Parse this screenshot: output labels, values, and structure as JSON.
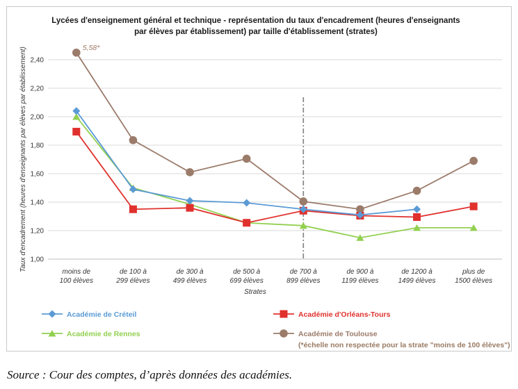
{
  "chart_data": {
    "type": "line",
    "title_lines": [
      "Lycées d'enseignement général et technique - représentation du taux d'encadrement (heures d'enseignants",
      "par élèves par établissement) par taille d'établissement (strates)"
    ],
    "xlabel": "Strates",
    "ylabel": "Taux d'encadrement (heures d'enseignants par élèves par établissement)",
    "categories": [
      [
        "moins de",
        "100 élèves"
      ],
      [
        "de 100 à",
        "299 élèves"
      ],
      [
        "de 300 à",
        "499 élèves"
      ],
      [
        "de 500 à",
        "699 élèves"
      ],
      [
        "de 700 à",
        "899 élèves"
      ],
      [
        "de 900 à",
        "1199 élèves"
      ],
      [
        "de 1200 à",
        "1499 élèves"
      ],
      [
        "plus de",
        "1500 élèves"
      ]
    ],
    "ylim": [
      1.0,
      2.4
    ],
    "yticks": [
      "1,00",
      "1,20",
      "1,40",
      "1,60",
      "1,80",
      "2,00",
      "2,20",
      "2,40"
    ],
    "grid": true,
    "legend_position": "bottom",
    "series": [
      {
        "name": "Académie de Créteil",
        "color": "#5b9bd5",
        "marker": "diamond",
        "values": [
          2.04,
          1.49,
          1.41,
          1.395,
          1.35,
          1.31,
          1.35,
          null
        ]
      },
      {
        "name": "Académie d'Orléans-Tours",
        "color": "#e0312d",
        "marker": "square",
        "values": [
          1.895,
          1.35,
          1.36,
          1.255,
          1.34,
          1.305,
          1.295,
          1.37
        ]
      },
      {
        "name": "Académie de Rennes",
        "color": "#92d050",
        "marker": "triangle",
        "values": [
          2.0,
          1.5,
          1.385,
          1.255,
          1.235,
          1.15,
          1.22,
          1.22
        ]
      },
      {
        "name": "Académie de Toulouse",
        "color": "#9b7b6a",
        "marker": "circle",
        "values": [
          2.45,
          1.835,
          1.61,
          1.705,
          1.405,
          1.35,
          1.48,
          1.69
        ]
      }
    ],
    "annotations": [
      {
        "text": "5,58*",
        "series": "Académie de Toulouse",
        "category_index": 0
      }
    ],
    "reference_line": {
      "between_category_index": 4,
      "style": "dash-dot"
    },
    "legend_note": "(*échelle non respectée pour la strate \"moins de 100 élèves\")"
  },
  "source": "Source : Cour des comptes, d’après données des académies."
}
